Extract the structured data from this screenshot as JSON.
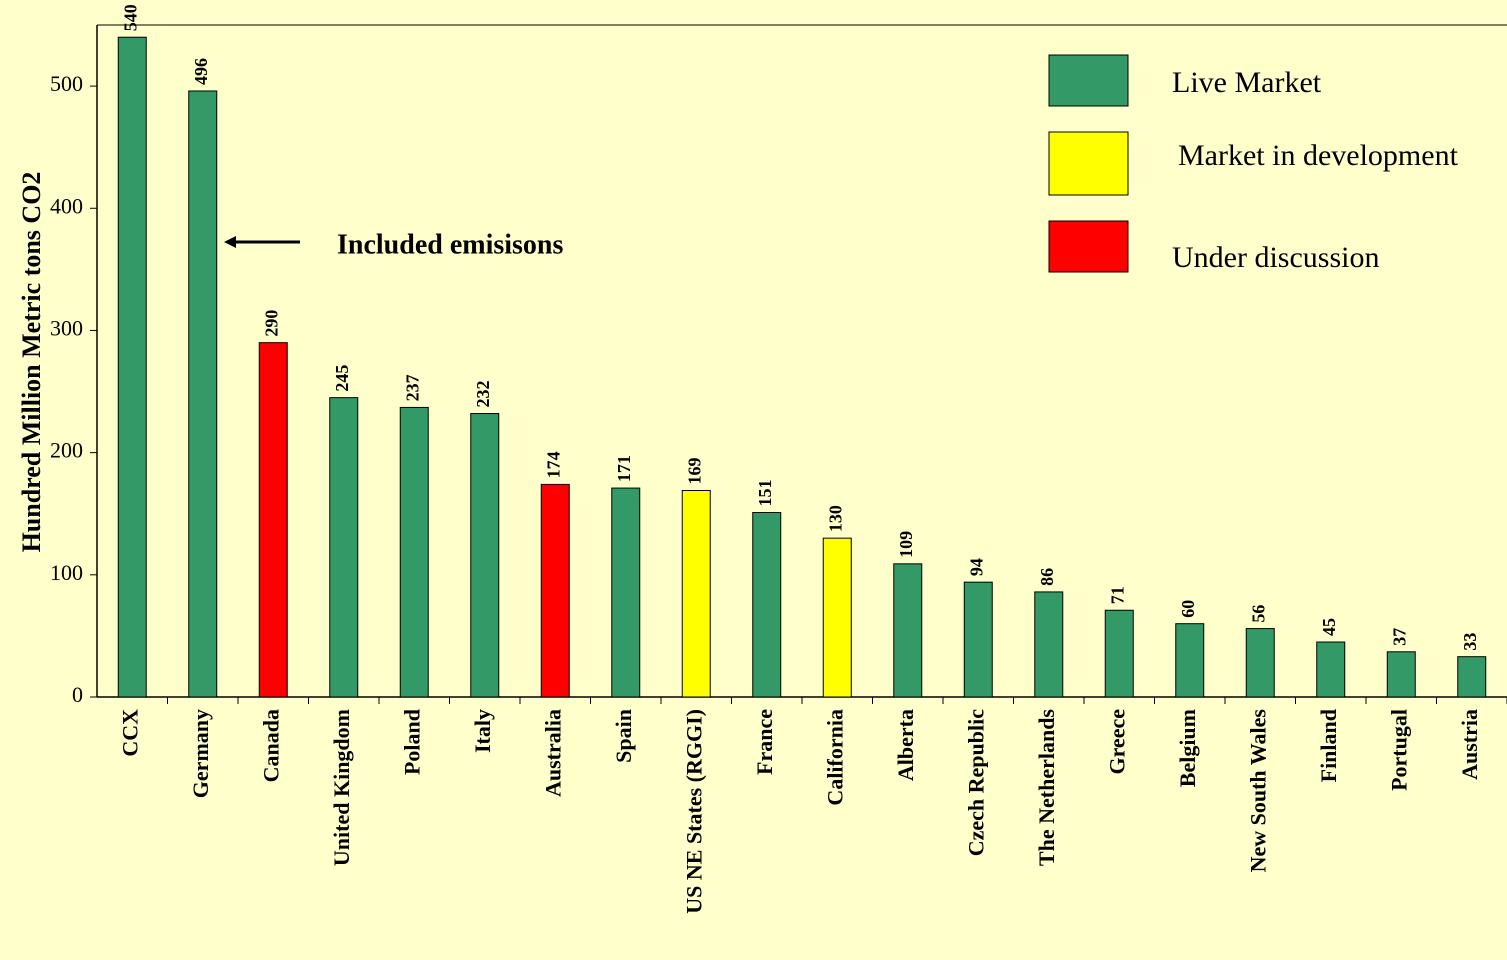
{
  "chart_data": {
    "type": "bar",
    "y_label": "Hundred Million Metric tons CO2",
    "annotation": "Included emisisons",
    "categories": [
      "CCX",
      "Germany",
      "Canada",
      "United Kingdom",
      "Poland",
      "Italy",
      "Australia",
      "Spain",
      "US NE States (RGGI)",
      "France",
      "California",
      "Alberta",
      "Czech Republic",
      "The Netherlands",
      "Greece",
      "Belgium",
      "New South Wales",
      "Finland",
      "Portugal",
      "Austria"
    ],
    "values": [
      540,
      496,
      290,
      245,
      237,
      232,
      174,
      171,
      169,
      151,
      130,
      109,
      94,
      86,
      71,
      60,
      56,
      45,
      37,
      33
    ],
    "colors": [
      "#339966",
      "#339966",
      "#ff0000",
      "#339966",
      "#339966",
      "#339966",
      "#ff0000",
      "#339966",
      "#ffff00",
      "#339966",
      "#ffff00",
      "#339966",
      "#339966",
      "#339966",
      "#339966",
      "#339966",
      "#339966",
      "#339966",
      "#339966",
      "#339966"
    ],
    "legend": [
      {
        "name": "Live Market",
        "color": "#339966"
      },
      {
        "name": "Market in development",
        "color": "#ffff00"
      },
      {
        "name": "Under discussion",
        "color": "#ff0000"
      }
    ],
    "ylim": [
      0,
      550
    ],
    "yticks": [
      0,
      100,
      200,
      300,
      400,
      500
    ]
  }
}
